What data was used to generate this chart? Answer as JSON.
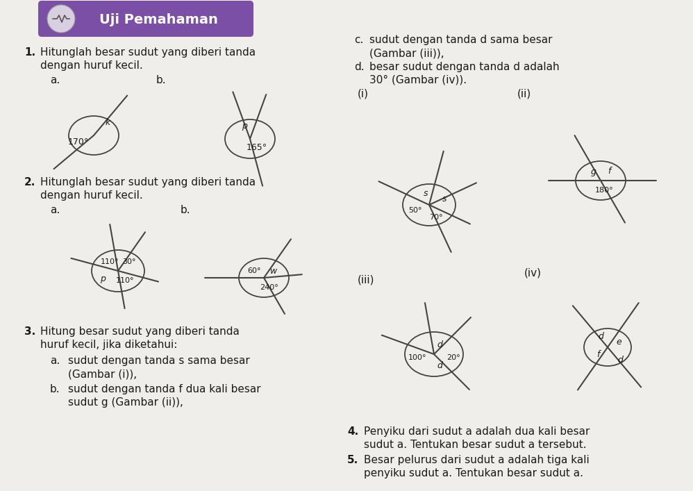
{
  "bg_color": "#f0eeea",
  "header_bg": "#7B4FA6",
  "header_text": "Uji Pemahaman",
  "text_color": "#1a1a1a",
  "line_color": "#444444",
  "body_fontsize": 11.0,
  "small_fontsize": 9.0,
  "diagram_fontsize": 9.0,
  "q1_line1": "Hitunglah besar sudut yang diberi tanda",
  "q1_line2": "dengan huruf kecil.",
  "q2_line1": "Hitunglah besar sudut yang diberi tanda",
  "q2_line2": "dengan huruf kecil.",
  "q3_line1": "Hitung besar sudut yang diberi tanda",
  "q3_line2": "huruf kecil, jika diketahui:",
  "q3a_line1": "sudut dengan tanda s sama besar",
  "q3a_line2": "(Gambar (i)),",
  "q3b_line1": "sudut dengan tanda f dua kali besar",
  "q3b_line2": "sudut g (Gambar (ii)),",
  "rc_line1": "sudut dengan tanda d sama besar",
  "rc_line2": "(Gambar (iii)),",
  "rd_line1": "besar sudut dengan tanda d adalah",
  "rd_line2": "30° (Gambar (iv)).",
  "q4_line1": "Penyiku dari sudut a adalah dua kali besar",
  "q4_line2": "sudut a. Tentukan besar sudut a tersebut.",
  "q5_line1": "Besar pelurus dari sudut a adalah tiga kali",
  "q5_line2": "penyiku sudut a. Tentukan besar sudut a."
}
